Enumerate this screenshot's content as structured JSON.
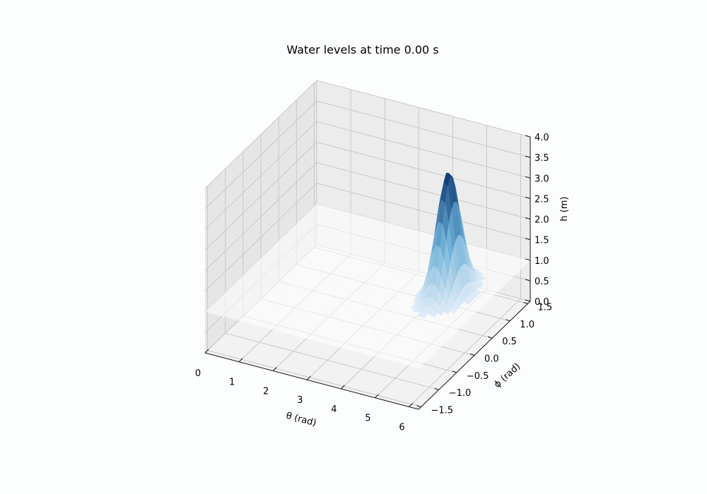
{
  "chart_data": {
    "type": "surface",
    "title": "Water levels at time 0.00 s",
    "xlabel": "θ (rad)",
    "ylabel": "ϕ (rad)",
    "zlabel": "h (m)",
    "xlim": [
      0,
      6.28
    ],
    "ylim": [
      -1.57,
      1.57
    ],
    "zlim": [
      0,
      4
    ],
    "xticks": [
      "0",
      "1",
      "2",
      "3",
      "4",
      "5",
      "6"
    ],
    "yticks": [
      "−1.5",
      "−1.0",
      "−0.5",
      "0.0",
      "0.5",
      "1.0",
      "1.5"
    ],
    "zticks": [
      "0.0",
      "0.5",
      "1.0",
      "1.5",
      "2.0",
      "2.5",
      "3.0",
      "3.5",
      "4.0"
    ],
    "colormap": "Blues",
    "colors": {
      "low": "#e4eef9",
      "mid": "#6aaed6",
      "high": "#08306b"
    },
    "background_level": 1.0,
    "peak": {
      "theta": 5.2,
      "phi": 0.3,
      "height": 4.0,
      "width": 0.25
    },
    "grid": true
  }
}
